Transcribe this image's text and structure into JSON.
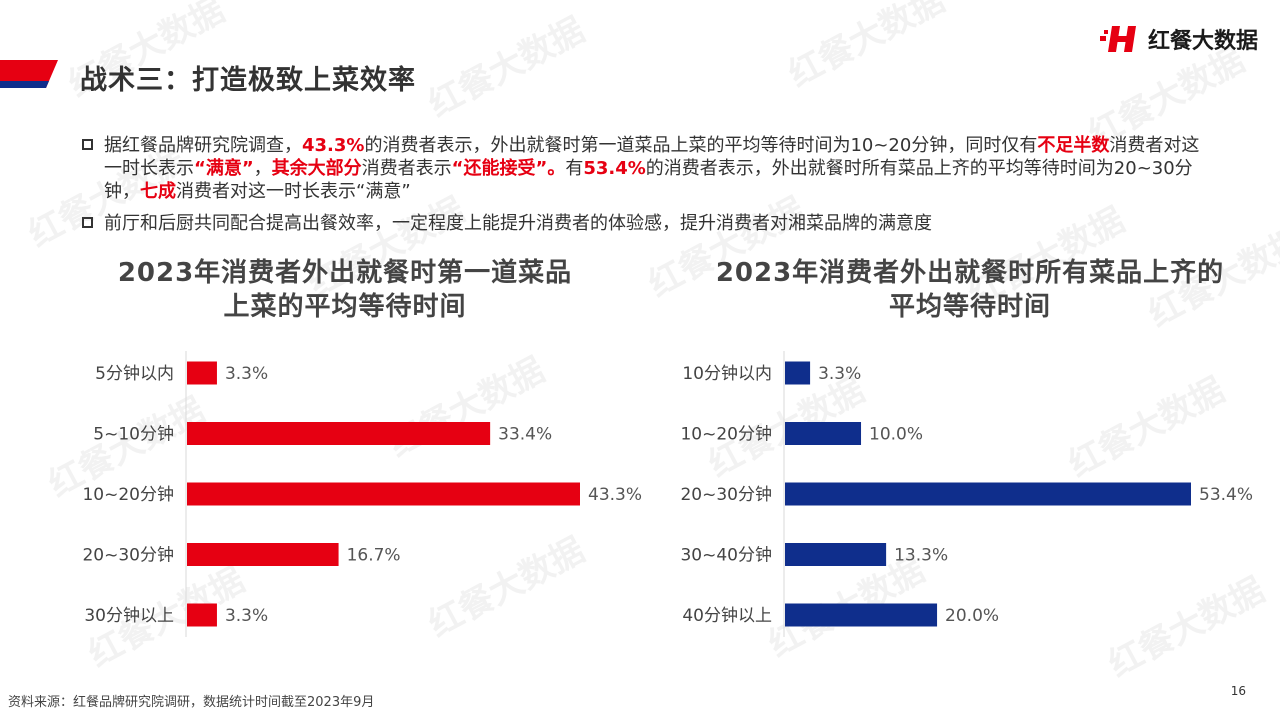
{
  "header": {
    "title": "战术三：打造极致上菜效率",
    "brand_name": "红餐大数据",
    "brand_mark": "H"
  },
  "watermark": "红餐大数据",
  "bullets": [
    {
      "segments": [
        {
          "text": "据红餐品牌研究院调查，",
          "emphasis": false
        },
        {
          "text": "43.3%",
          "emphasis": true
        },
        {
          "text": "的消费者表示，外出就餐时第一道菜品上菜的平均等待时间为10~20分钟，同时仅有",
          "emphasis": false
        },
        {
          "text": "不足半数",
          "emphasis": true
        },
        {
          "text": "消费者对这一时长表示",
          "emphasis": false
        },
        {
          "text": "“满意”",
          "emphasis": true
        },
        {
          "text": "，",
          "emphasis": false
        },
        {
          "text": "其余大部分",
          "emphasis": true
        },
        {
          "text": "消费者表示",
          "emphasis": false
        },
        {
          "text": "“还能接受”。",
          "emphasis": true
        },
        {
          "text": "有",
          "emphasis": false
        },
        {
          "text": "53.4%",
          "emphasis": true
        },
        {
          "text": "的消费者表示，外出就餐时所有菜品上齐的平均等待时间为20~30分钟，",
          "emphasis": false
        },
        {
          "text": "七成",
          "emphasis": true
        },
        {
          "text": "消费者对这一时长表示“满意”",
          "emphasis": false
        }
      ]
    },
    {
      "segments": [
        {
          "text": "前厅和后厨共同配合提高出餐效率，一定程度上能提升消费者的体验感，提升消费者对湘菜品牌的满意度",
          "emphasis": false
        }
      ]
    }
  ],
  "chart_data": [
    {
      "type": "bar",
      "orientation": "horizontal",
      "title_lines": [
        "2023年消费者外出就餐时第一道菜品",
        "上菜的平均等待时间"
      ],
      "categories": [
        "5分钟以内",
        "5~10分钟",
        "10~20分钟",
        "20~30分钟",
        "30分钟以上"
      ],
      "values": [
        3.3,
        33.4,
        43.3,
        16.7,
        3.3
      ],
      "value_labels": [
        "3.3%",
        "33.4%",
        "43.3%",
        "16.7%",
        "3.3%"
      ],
      "color": "#e60012",
      "xlim": [
        0,
        43.3
      ],
      "grid": false,
      "legend": "none"
    },
    {
      "type": "bar",
      "orientation": "horizontal",
      "title_lines": [
        "2023年消费者外出就餐时所有菜品上齐的",
        "平均等待时间"
      ],
      "categories": [
        "10分钟以内",
        "10~20分钟",
        "20~30分钟",
        "30~40分钟",
        "40分钟以上"
      ],
      "values": [
        3.3,
        10.0,
        53.4,
        13.3,
        20.0
      ],
      "value_labels": [
        "3.3%",
        "10.0%",
        "53.4%",
        "13.3%",
        "20.0%"
      ],
      "color": "#0f2e8c",
      "xlim": [
        0,
        53.4
      ],
      "grid": false,
      "legend": "none"
    }
  ],
  "footer": {
    "source": "资料来源：红餐品牌研究院调研，数据统计时间截至2023年9月",
    "page_number": "16"
  }
}
